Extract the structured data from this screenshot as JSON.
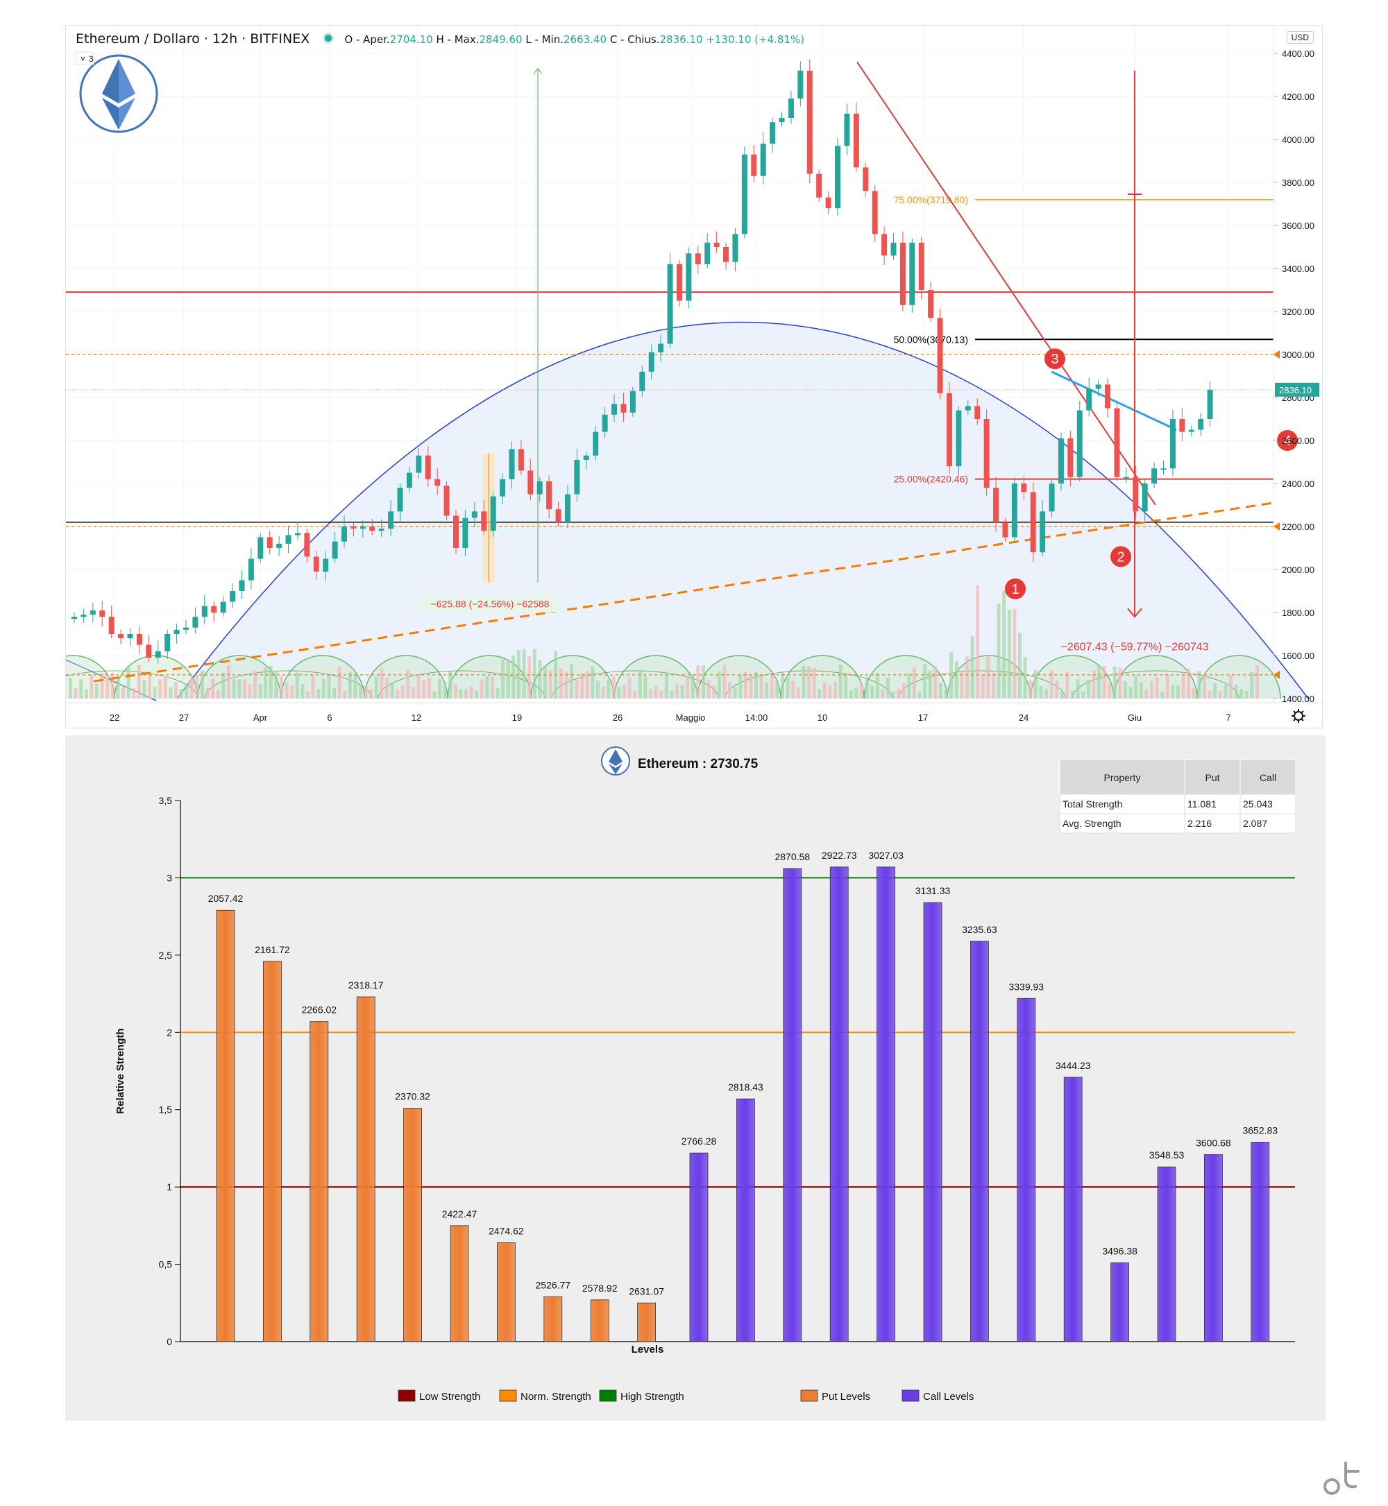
{
  "top_chart": {
    "symbol_title": "Ethereum / Dollaro · 12h · BITFINEX",
    "ohlc": {
      "open_label": "O - Aper.",
      "open": "2704.10",
      "high_label": "H - Max.",
      "high": "2849.60",
      "low_label": "L - Min.",
      "low": "2663.40",
      "close_label": "C - Chius.",
      "close": "2836.10",
      "change": "+130.10 (+4.81%)"
    },
    "currency": "USD",
    "interval_badge": "3",
    "price_axis": {
      "min": 1400,
      "max": 4400,
      "ticks": [
        "4400.00",
        "4200.00",
        "4000.00",
        "3800.00",
        "3600.00",
        "3400.00",
        "3200.00",
        "3000.00",
        "2800.00",
        "2600.00",
        "2400.00",
        "2200.00",
        "2000.00",
        "1800.00",
        "1600.00",
        "1400.00"
      ]
    },
    "time_axis_labels": [
      "22",
      "27",
      "Apr",
      "6",
      "12",
      "19",
      "26",
      "Maggio",
      "14:00",
      "10",
      "17",
      "24",
      "Giu",
      "7"
    ],
    "last_price_label": "2836.10",
    "annotations": {
      "fib_75": "75.00%(3719.80)",
      "fib_50": "50.00%(3070.13)",
      "fib_25": "25.00%(2420.46)",
      "measure_down": "−625.88 (−24.56%) −62588",
      "measure_big_down": "−2607.43 (−59.77%) −260743"
    },
    "markers": [
      "1",
      "2",
      "3",
      "4"
    ],
    "colors": {
      "up": "#26a69a",
      "down": "#ef5350",
      "arc_fill": "#dde8f8",
      "arc_stroke": "#2a3fd6",
      "resistance": "#e53935",
      "support": "#000000",
      "dashed_orange": "#f57c00",
      "marker": "#e53935"
    }
  },
  "bottom_chart": {
    "title": "Ethereum : 2730.75",
    "table": {
      "headers": [
        "Property",
        "Put",
        "Call"
      ],
      "rows": [
        [
          "Total Strength",
          "11.081",
          "25.043"
        ],
        [
          "Avg. Strength",
          "2.216",
          "2.087"
        ]
      ]
    },
    "chart_data": {
      "type": "bar",
      "ylabel": "Relative Strength",
      "xlabel": "Levels",
      "ylim": [
        0,
        3.5
      ],
      "yticks": [
        "0",
        "0,5",
        "1",
        "1,5",
        "2",
        "2,5",
        "3",
        "3,5"
      ],
      "reference_lines": [
        {
          "name": "Low Strength",
          "value": 1,
          "color": "#8b0000"
        },
        {
          "name": "Norm. Strength",
          "value": 2,
          "color": "#ff8c00"
        },
        {
          "name": "High Strength",
          "value": 3,
          "color": "#008000"
        }
      ],
      "series": [
        {
          "name": "Put Levels",
          "color": "#ed7d31",
          "categories": [
            "2057.42",
            "2161.72",
            "2266.02",
            "2318.17",
            "2370.32",
            "2422.47",
            "2474.62",
            "2526.77",
            "2578.92",
            "2631.07"
          ],
          "values": [
            2.79,
            2.46,
            2.07,
            2.23,
            1.51,
            0.75,
            0.64,
            0.29,
            0.27,
            0.25
          ]
        },
        {
          "name": "Call Levels",
          "color": "#6a3de8",
          "categories": [
            "2766.28",
            "2818.43",
            "2870.58",
            "2922.73",
            "3027.03",
            "3131.33",
            "3235.63",
            "3339.93",
            "3444.23",
            "3496.38",
            "3548.53",
            "3600.68",
            "3652.83"
          ],
          "values": [
            1.22,
            1.57,
            3.06,
            3.07,
            3.07,
            2.84,
            2.59,
            2.22,
            1.71,
            0.51,
            1.13,
            1.21,
            1.29
          ]
        }
      ],
      "legend": [
        "Low Strength",
        "Norm. Strength",
        "High Strength",
        "Put Levels",
        "Call Levels"
      ]
    }
  }
}
